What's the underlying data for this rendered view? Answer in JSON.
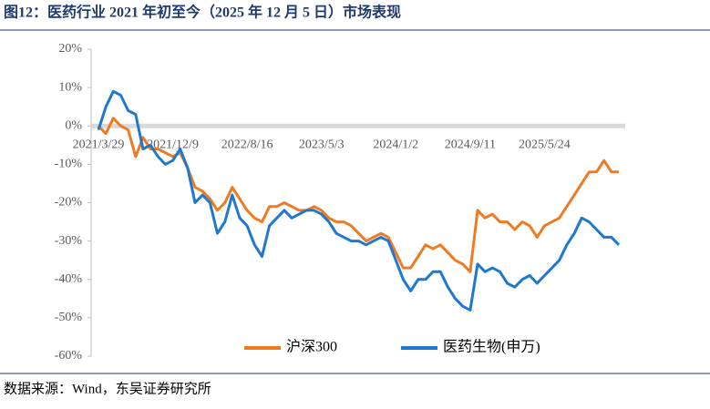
{
  "chart_data": {
    "type": "line",
    "title": "图12：医药行业 2021 年初至今（2025 年 12 月 5 日）市场表现",
    "source": "数据来源：Wind，东吴证券研究所",
    "categories": [
      "2021/3/29",
      null,
      null,
      null,
      null,
      null,
      null,
      null,
      null,
      null,
      "2021/12/9",
      null,
      null,
      null,
      null,
      null,
      null,
      null,
      null,
      null,
      "2022/8/16",
      null,
      null,
      null,
      null,
      null,
      null,
      null,
      null,
      null,
      "2023/5/3",
      null,
      null,
      null,
      null,
      null,
      null,
      null,
      null,
      null,
      "2024/1/2",
      null,
      null,
      null,
      null,
      null,
      null,
      null,
      null,
      null,
      "2024/9/11",
      null,
      null,
      null,
      null,
      null,
      null,
      null,
      null,
      null,
      "2025/5/24",
      null,
      null,
      null,
      null,
      null,
      null,
      null,
      null,
      null,
      null
    ],
    "series": [
      {
        "name": "沪深300",
        "color": "#f07a22",
        "values": [
          0,
          -2,
          2,
          0,
          -1,
          -8,
          -3,
          -6,
          -6,
          -7,
          -8,
          -7,
          -11,
          -16,
          -17,
          -19,
          -22,
          -20,
          -16,
          -19,
          -22,
          -24,
          -25,
          -21,
          -21,
          -20,
          -21,
          -22,
          -22,
          -21,
          -22,
          -24,
          -25,
          -25,
          -26,
          -28,
          -30,
          -29,
          -28,
          -29,
          -33,
          -37,
          -37,
          -34,
          -31,
          -32,
          -31,
          -33,
          -35,
          -36,
          -38,
          -22,
          -24,
          -23,
          -25,
          -25,
          -27,
          -25,
          -26,
          -29,
          -26,
          -25,
          -24,
          -21,
          -18,
          -15,
          -12,
          -12,
          -9,
          -12,
          -12
        ]
      },
      {
        "name": "医药生物(申万)",
        "color": "#1e78d0",
        "values": [
          -1,
          5,
          9,
          8,
          4,
          3,
          -6,
          -5,
          -8,
          -10,
          -9,
          -6,
          -11,
          -20,
          -18,
          -20,
          -28,
          -25,
          -18,
          -24,
          -26,
          -31,
          -34,
          -26,
          -24,
          -22,
          -24,
          -23,
          -22,
          -22,
          -23,
          -25,
          -28,
          -29,
          -30,
          -30,
          -31,
          -30,
          -29,
          -30,
          -35,
          -40,
          -43,
          -40,
          -40,
          -38,
          -38,
          -42,
          -45,
          -47,
          -48,
          -36,
          -38,
          -37,
          -38,
          -41,
          -42,
          -40,
          -39,
          -41,
          -39,
          -37,
          -35,
          -31,
          -28,
          -24,
          -25,
          -27,
          -29,
          -29,
          -31
        ]
      }
    ],
    "ylim": [
      -60,
      20
    ],
    "yticks": [
      {
        "value": -60,
        "label": "-60%"
      },
      {
        "value": -50,
        "label": "-50%"
      },
      {
        "value": -40,
        "label": "-40%"
      },
      {
        "value": -30,
        "label": "-30%"
      },
      {
        "value": -20,
        "label": "-20%"
      },
      {
        "value": -10,
        "label": "-10%"
      },
      {
        "value": 0,
        "label": "0%"
      },
      {
        "value": 10,
        "label": "10%"
      },
      {
        "value": 20,
        "label": "20%"
      }
    ],
    "legend": "bottom"
  }
}
